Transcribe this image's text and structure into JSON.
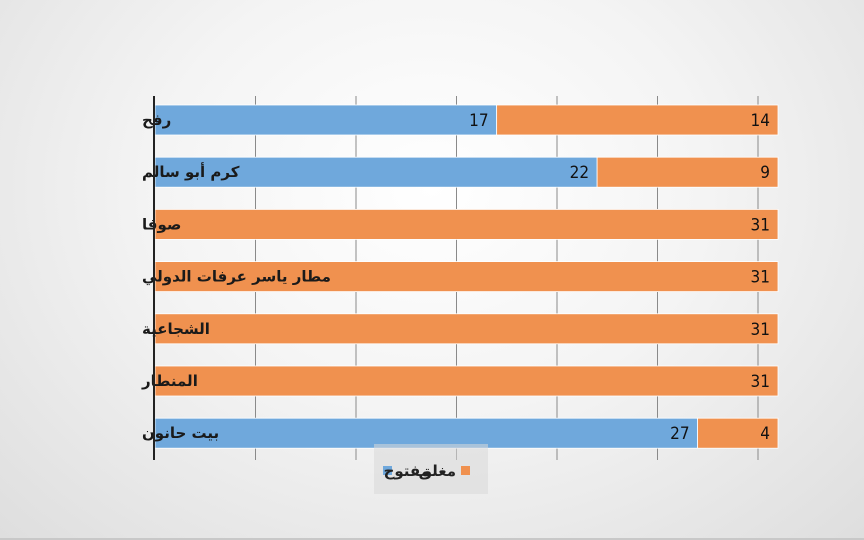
{
  "chart_data": {
    "type": "bar",
    "orientation": "horizontal",
    "stacked": true,
    "title": "",
    "categories": [
      "رفح",
      "كرم أبو سالم",
      "صوفا",
      "مطار ياسر عرفات الدولي",
      "الشجاعية",
      "المنطار",
      "بيت حانون"
    ],
    "series": [
      {
        "name": "مفتوح",
        "color": "#6fa8dc",
        "values": [
          17,
          22,
          0,
          0,
          0,
          0,
          27
        ]
      },
      {
        "name": "مغلق",
        "color": "#f0914f",
        "values": [
          14,
          9,
          31,
          31,
          31,
          31,
          4
        ]
      }
    ],
    "xlim": [
      0,
      31
    ],
    "grid": true,
    "legend_position": "bottom",
    "data_labels": true
  }
}
